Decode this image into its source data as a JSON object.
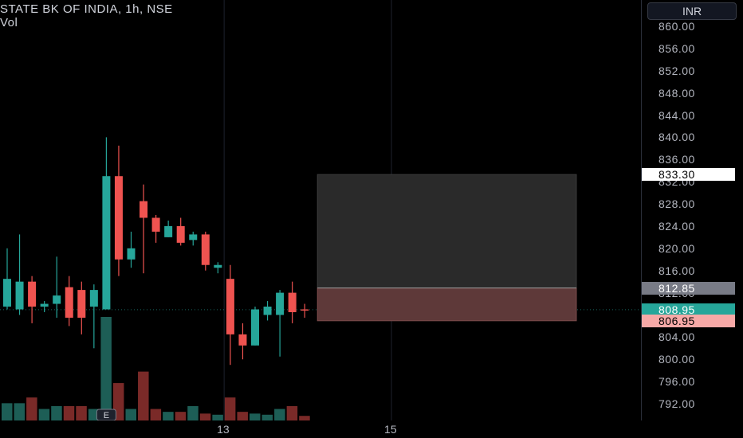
{
  "header": {
    "title": "STATE BK OF INDIA, 1h, NSE",
    "volume_label": "Vol"
  },
  "currency_button": "INR",
  "price_scale": {
    "ticks": [
      "860.00",
      "856.00",
      "852.00",
      "848.00",
      "844.00",
      "840.00",
      "836.00",
      "832.00",
      "828.00",
      "824.00",
      "820.00",
      "816.00",
      "812.00",
      "808.00",
      "804.00",
      "800.00",
      "796.00",
      "792.00"
    ],
    "badges": [
      {
        "label": "833.30",
        "bg": "#ffffff",
        "fg": "#000000"
      },
      {
        "label": "812.85",
        "bg": "#787b86",
        "fg": "#ffffff"
      },
      {
        "label": "808.95",
        "bg": "#26a69a",
        "fg": "#ffffff"
      },
      {
        "label": "806.95",
        "bg": "#f7a9a7",
        "fg": "#000000"
      }
    ]
  },
  "time_scale": {
    "labels": [
      "13",
      "15"
    ]
  },
  "event_marker": "E",
  "colors": {
    "up": "#26a69a",
    "down": "#ef5350",
    "up_volume": "#1d5e56",
    "down_volume": "#7a2a28",
    "grid": "#1e222d",
    "background": "#000000",
    "target_zone": "#2a2a2a",
    "stop_zone": "#5e3939"
  },
  "chart_data": {
    "type": "candlestick",
    "symbol": "STATE BK OF INDIA",
    "interval": "1h",
    "exchange": "NSE",
    "currency": "INR",
    "ylim": [
      790,
      862
    ],
    "last_price": 808.95,
    "candles": [
      {
        "o": 809.5,
        "h": 820.0,
        "l": 809.0,
        "c": 814.5
      },
      {
        "o": 809.0,
        "h": 822.5,
        "l": 808.0,
        "c": 814.0
      },
      {
        "o": 814.0,
        "h": 815.0,
        "l": 806.5,
        "c": 809.5
      },
      {
        "o": 809.5,
        "h": 810.5,
        "l": 808.5,
        "c": 810.0
      },
      {
        "o": 810.0,
        "h": 818.5,
        "l": 807.5,
        "c": 811.5
      },
      {
        "o": 813.0,
        "h": 815.0,
        "l": 806.0,
        "c": 807.5
      },
      {
        "o": 812.5,
        "h": 814.0,
        "l": 804.5,
        "c": 807.5
      },
      {
        "o": 809.5,
        "h": 813.5,
        "l": 802.0,
        "c": 812.5
      },
      {
        "o": 809.0,
        "h": 840.0,
        "l": 809.0,
        "c": 833.0
      },
      {
        "o": 833.0,
        "h": 838.5,
        "l": 815.0,
        "c": 818.0
      },
      {
        "o": 818.0,
        "h": 823.0,
        "l": 816.5,
        "c": 820.0
      },
      {
        "o": 828.5,
        "h": 831.5,
        "l": 815.5,
        "c": 825.5
      },
      {
        "o": 825.5,
        "h": 826.0,
        "l": 821.0,
        "c": 823.0
      },
      {
        "o": 822.0,
        "h": 825.0,
        "l": 822.0,
        "c": 824.0
      },
      {
        "o": 824.0,
        "h": 825.5,
        "l": 820.5,
        "c": 821.0
      },
      {
        "o": 821.5,
        "h": 823.0,
        "l": 820.5,
        "c": 822.5
      },
      {
        "o": 822.5,
        "h": 823.0,
        "l": 816.0,
        "c": 817.0
      },
      {
        "o": 816.5,
        "h": 817.5,
        "l": 815.5,
        "c": 817.0
      },
      {
        "o": 814.5,
        "h": 817.0,
        "l": 799.0,
        "c": 804.5
      },
      {
        "o": 804.5,
        "h": 806.5,
        "l": 800.0,
        "c": 802.5
      },
      {
        "o": 802.5,
        "h": 809.5,
        "l": 802.5,
        "c": 809.0
      },
      {
        "o": 808.0,
        "h": 810.5,
        "l": 807.0,
        "c": 809.5
      },
      {
        "o": 808.0,
        "h": 812.5,
        "l": 800.5,
        "c": 812.0
      },
      {
        "o": 812.0,
        "h": 814.0,
        "l": 806.5,
        "c": 808.5
      },
      {
        "o": 809.0,
        "h": 810.0,
        "l": 807.5,
        "c": 808.95
      }
    ],
    "volumes": [
      3,
      3,
      4,
      2,
      2.5,
      2.5,
      2.5,
      2,
      18,
      6.5,
      2,
      8.5,
      2,
      1.5,
      1.5,
      2.5,
      1.2,
      1,
      4,
      1.5,
      1.2,
      1,
      2,
      2.5,
      0.8
    ],
    "position_tool": {
      "entry": 812.85,
      "target": 833.3,
      "stop": 806.95
    },
    "x_labels": [
      {
        "label": "13",
        "index": 17.5
      },
      {
        "label": "15",
        "index": 31.0
      }
    ]
  }
}
